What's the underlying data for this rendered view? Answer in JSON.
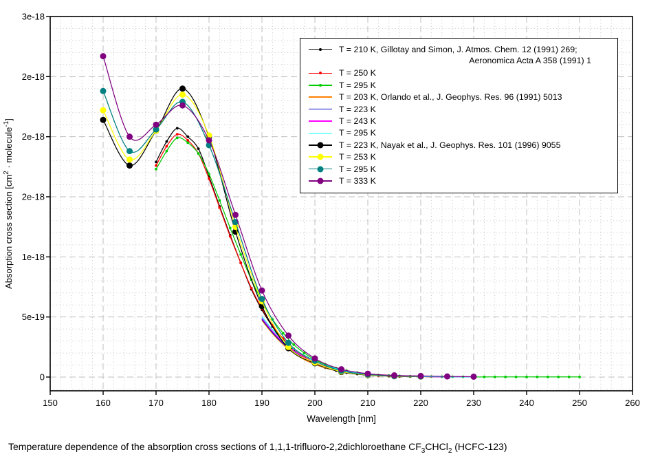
{
  "figure": {
    "x_axis": {
      "title": "Wavelength [nm]",
      "min": 150,
      "max": 260,
      "major_ticks": [
        150,
        160,
        170,
        180,
        190,
        200,
        210,
        220,
        230,
        240,
        250,
        260
      ],
      "minor_step_nm": 2
    },
    "y_axis": {
      "title_parts": {
        "pre": "Absorption cross section [cm",
        "sup1": "2",
        "mid": " · molecule",
        "sup2": "-1",
        "post": "]"
      },
      "major_ticks": [
        {
          "v": 0.0,
          "label": "0"
        },
        {
          "v": 0.5,
          "label": "5e-19"
        },
        {
          "v": 1.0,
          "label": "1e-18"
        },
        {
          "v": 1.5,
          "label": "2e-18"
        },
        {
          "v": 2.0,
          "label": "2e-18"
        },
        {
          "v": 2.5,
          "label": "2e-18"
        },
        {
          "v": 3.0,
          "label": "3e-18"
        }
      ],
      "minor_step": 0.1,
      "values_scale": "1e-18 cm^2 molecule^-1"
    },
    "caption_parts": {
      "pre": "Temperature dependence of the absorption cross sections of 1,1,1-trifluoro-2,2dichloroethane CF",
      "sub1": "3",
      "mid": "CHCl",
      "sub2": "2",
      "post": " (HCFC-123)"
    }
  },
  "colors": {
    "background": "#ffffff",
    "axis": "#000000",
    "grid_major": "#bfbfbf",
    "grid_minor": "#cccccc"
  },
  "chart_data": {
    "type": "line",
    "title": "Temperature dependence of the absorption cross sections of 1,1,1-trifluoro-2,2dichloroethane CF3CHCl2 (HCFC-123)",
    "xlabel": "Wavelength [nm]",
    "ylabel": "Absorption cross section [cm2 · molecule-1]",
    "xlim": [
      150,
      260
    ],
    "ylim_1e18": [
      -0.11,
      3.0
    ],
    "grid": true,
    "legend_position": "top-right-inside",
    "y_values_unit": "1e-18 cm^2/molecule",
    "series": [
      {
        "name": "gillotay-210K",
        "label": "T = 210 K, Gillotay and Simon, J. Atmos. Chem. 12 (1991) 269;",
        "label_line2": "Aeronomica Acta A 358 (1991) 1",
        "color": "#000000",
        "marker": "small-dot",
        "points": [
          [
            170,
            1.79
          ],
          [
            172,
            1.96
          ],
          [
            174,
            2.07
          ],
          [
            176,
            2.0
          ],
          [
            178,
            1.9
          ],
          [
            180,
            1.67
          ],
          [
            182,
            1.42
          ],
          [
            184,
            1.18
          ],
          [
            186,
            0.95
          ],
          [
            188,
            0.73
          ],
          [
            190,
            0.56
          ],
          [
            192,
            0.42
          ],
          [
            194,
            0.31
          ],
          [
            196,
            0.225
          ],
          [
            198,
            0.16
          ],
          [
            200,
            0.112
          ],
          [
            202,
            0.078
          ],
          [
            204,
            0.054
          ],
          [
            206,
            0.037
          ],
          [
            208,
            0.025
          ],
          [
            210,
            0.017
          ],
          [
            212,
            0.012
          ],
          [
            214,
            0.008
          ],
          [
            216,
            0.005
          ],
          [
            218,
            0.004
          ],
          [
            220,
            0.003
          ]
        ]
      },
      {
        "name": "gillotay-250K",
        "label": "T = 250 K",
        "color": "#ff0000",
        "marker": "small-dot",
        "points": [
          [
            170,
            1.76
          ],
          [
            172,
            1.92
          ],
          [
            174,
            2.02
          ],
          [
            176,
            1.97
          ],
          [
            178,
            1.86
          ],
          [
            180,
            1.65
          ],
          [
            182,
            1.41
          ],
          [
            184,
            1.17
          ],
          [
            186,
            0.95
          ],
          [
            188,
            0.74
          ],
          [
            190,
            0.57
          ],
          [
            192,
            0.43
          ],
          [
            194,
            0.32
          ],
          [
            196,
            0.235
          ],
          [
            198,
            0.17
          ],
          [
            200,
            0.12
          ],
          [
            202,
            0.085
          ],
          [
            204,
            0.06
          ],
          [
            206,
            0.042
          ],
          [
            208,
            0.029
          ],
          [
            210,
            0.02
          ],
          [
            212,
            0.014
          ],
          [
            214,
            0.01
          ],
          [
            216,
            0.007
          ],
          [
            218,
            0.005
          ],
          [
            220,
            0.003
          ]
        ]
      },
      {
        "name": "gillotay-295K",
        "label": "T = 295 K",
        "color": "#00cc00",
        "marker": "small-dot",
        "points": [
          [
            170,
            1.73
          ],
          [
            172,
            1.88
          ],
          [
            174,
            1.99
          ],
          [
            176,
            1.95
          ],
          [
            178,
            1.86
          ],
          [
            180,
            1.69
          ],
          [
            182,
            1.47
          ],
          [
            184,
            1.24
          ],
          [
            186,
            1.02
          ],
          [
            188,
            0.81
          ],
          [
            190,
            0.63
          ],
          [
            192,
            0.48
          ],
          [
            194,
            0.365
          ],
          [
            196,
            0.27
          ],
          [
            198,
            0.2
          ],
          [
            200,
            0.145
          ],
          [
            202,
            0.105
          ],
          [
            204,
            0.075
          ],
          [
            206,
            0.053
          ],
          [
            208,
            0.037
          ],
          [
            210,
            0.026
          ],
          [
            212,
            0.018
          ],
          [
            214,
            0.013
          ],
          [
            216,
            0.009
          ],
          [
            218,
            0.006
          ],
          [
            220,
            0.005
          ],
          [
            222,
            0.004
          ],
          [
            224,
            0.003
          ],
          [
            226,
            0.002
          ],
          [
            228,
            0.002
          ],
          [
            230,
            0.001
          ],
          [
            232,
            0.001
          ],
          [
            234,
            0.001
          ],
          [
            236,
            0.001
          ],
          [
            238,
            0.001
          ],
          [
            240,
            0.001
          ],
          [
            242,
            0.001
          ],
          [
            244,
            0.001
          ],
          [
            246,
            0.001
          ],
          [
            248,
            0.001
          ],
          [
            250,
            0.001
          ]
        ]
      },
      {
        "name": "orlando-203K",
        "label": "T = 203 K, Orlando et al., J. Geophys. Res. 96 (1991) 5013",
        "color": "#ff8000",
        "marker": "none",
        "points": [
          [
            190,
            0.47
          ],
          [
            192,
            0.36
          ],
          [
            194,
            0.27
          ],
          [
            196,
            0.2
          ],
          [
            198,
            0.145
          ],
          [
            200,
            0.105
          ],
          [
            202,
            0.075
          ],
          [
            204,
            0.053
          ],
          [
            206,
            0.037
          ],
          [
            208,
            0.026
          ],
          [
            210,
            0.018
          ],
          [
            212,
            0.013
          ],
          [
            214,
            0.009
          ],
          [
            216,
            0.006
          ],
          [
            218,
            0.004
          ],
          [
            220,
            0.003
          ],
          [
            222,
            0.002
          ],
          [
            224,
            0.002
          ],
          [
            226,
            0.001
          ],
          [
            228,
            0.001
          ],
          [
            230,
            0.001
          ]
        ]
      },
      {
        "name": "orlando-223K",
        "label": "T = 223 K",
        "color": "#0000cc",
        "marker": "none",
        "points": [
          [
            190,
            0.48
          ],
          [
            192,
            0.37
          ],
          [
            194,
            0.28
          ],
          [
            196,
            0.21
          ],
          [
            198,
            0.155
          ],
          [
            200,
            0.112
          ],
          [
            202,
            0.08
          ],
          [
            204,
            0.057
          ],
          [
            206,
            0.04
          ],
          [
            208,
            0.028
          ],
          [
            210,
            0.02
          ],
          [
            212,
            0.014
          ],
          [
            214,
            0.01
          ],
          [
            216,
            0.007
          ],
          [
            218,
            0.005
          ],
          [
            220,
            0.004
          ],
          [
            222,
            0.003
          ],
          [
            224,
            0.002
          ],
          [
            226,
            0.002
          ],
          [
            228,
            0.001
          ],
          [
            230,
            0.001
          ]
        ]
      },
      {
        "name": "orlando-243K",
        "label": "T = 243 K",
        "color": "#ff00ff",
        "marker": "none",
        "points": [
          [
            190,
            0.49
          ],
          [
            192,
            0.38
          ],
          [
            194,
            0.29
          ],
          [
            196,
            0.22
          ],
          [
            198,
            0.163
          ],
          [
            200,
            0.12
          ],
          [
            202,
            0.087
          ],
          [
            204,
            0.062
          ],
          [
            206,
            0.044
          ],
          [
            208,
            0.031
          ],
          [
            210,
            0.022
          ],
          [
            212,
            0.016
          ],
          [
            214,
            0.011
          ],
          [
            216,
            0.008
          ],
          [
            218,
            0.006
          ],
          [
            220,
            0.004
          ],
          [
            222,
            0.003
          ],
          [
            224,
            0.002
          ],
          [
            226,
            0.002
          ],
          [
            228,
            0.001
          ],
          [
            230,
            0.001
          ]
        ]
      },
      {
        "name": "orlando-295K",
        "label": "T = 295 K",
        "color": "#00ffff",
        "marker": "none",
        "points": [
          [
            190,
            0.5
          ],
          [
            192,
            0.395
          ],
          [
            194,
            0.305
          ],
          [
            196,
            0.235
          ],
          [
            198,
            0.177
          ],
          [
            200,
            0.132
          ],
          [
            202,
            0.097
          ],
          [
            204,
            0.07
          ],
          [
            206,
            0.051
          ],
          [
            208,
            0.036
          ],
          [
            210,
            0.026
          ],
          [
            212,
            0.019
          ],
          [
            214,
            0.013
          ],
          [
            216,
            0.009
          ],
          [
            218,
            0.007
          ],
          [
            220,
            0.005
          ],
          [
            222,
            0.004
          ],
          [
            224,
            0.003
          ],
          [
            226,
            0.002
          ],
          [
            228,
            0.002
          ],
          [
            230,
            0.001
          ]
        ]
      },
      {
        "name": "nayak-223K",
        "label": "T = 223 K, Nayak et al., J. Geophys. Res. 101 (1996) 9055",
        "color": "#000000",
        "marker": "large-dot",
        "points": [
          [
            160,
            2.14
          ],
          [
            165,
            1.76
          ],
          [
            170,
            2.05
          ],
          [
            175,
            2.4
          ],
          [
            180,
            2.0
          ],
          [
            185,
            1.21
          ],
          [
            190,
            0.59
          ],
          [
            195,
            0.24
          ],
          [
            200,
            0.115
          ],
          [
            205,
            0.042
          ],
          [
            210,
            0.016
          ],
          [
            215,
            0.007
          ],
          [
            220,
            0.004
          ]
        ]
      },
      {
        "name": "nayak-253K",
        "label": "T = 253 K",
        "color": "#ffff00",
        "marker": "large-dot",
        "points": [
          [
            160,
            2.22
          ],
          [
            165,
            1.81
          ],
          [
            170,
            2.05
          ],
          [
            175,
            2.35
          ],
          [
            180,
            2.01
          ],
          [
            185,
            1.25
          ],
          [
            190,
            0.63
          ],
          [
            195,
            0.25
          ],
          [
            200,
            0.12
          ],
          [
            205,
            0.046
          ],
          [
            210,
            0.018
          ],
          [
            215,
            0.008
          ],
          [
            220,
            0.004
          ]
        ]
      },
      {
        "name": "nayak-295K",
        "label": "T = 295 K",
        "color": "#008080",
        "marker": "large-dot",
        "points": [
          [
            160,
            2.38
          ],
          [
            165,
            1.88
          ],
          [
            170,
            2.06
          ],
          [
            175,
            2.29
          ],
          [
            180,
            1.93
          ],
          [
            185,
            1.29
          ],
          [
            190,
            0.65
          ],
          [
            195,
            0.285
          ],
          [
            200,
            0.135
          ],
          [
            205,
            0.052
          ],
          [
            210,
            0.021
          ],
          [
            215,
            0.009
          ],
          [
            220,
            0.005
          ]
        ]
      },
      {
        "name": "nayak-333K",
        "label": "T = 333 K",
        "color": "#800080",
        "marker": "large-dot",
        "points": [
          [
            160,
            2.67
          ],
          [
            165,
            2.0
          ],
          [
            170,
            2.1
          ],
          [
            175,
            2.26
          ],
          [
            180,
            1.97
          ],
          [
            185,
            1.35
          ],
          [
            190,
            0.72
          ],
          [
            195,
            0.345
          ],
          [
            200,
            0.155
          ],
          [
            205,
            0.065
          ],
          [
            210,
            0.028
          ],
          [
            215,
            0.014
          ],
          [
            220,
            0.009
          ],
          [
            225,
            0.005
          ],
          [
            230,
            0.003
          ]
        ]
      }
    ]
  }
}
